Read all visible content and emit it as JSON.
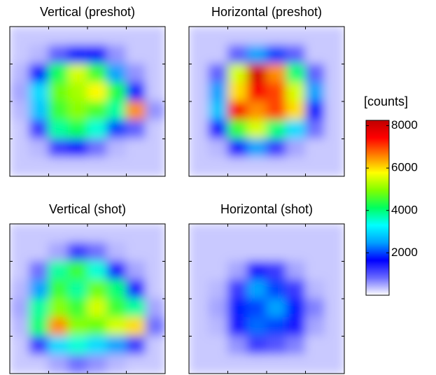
{
  "chart_data": [
    {
      "type": "heatmap",
      "title": "Vertical (preshot)",
      "values": [
        [
          300,
          300,
          300,
          300,
          300,
          300,
          300,
          300
        ],
        [
          300,
          400,
          900,
          1800,
          1500,
          600,
          300,
          300
        ],
        [
          400,
          1800,
          4200,
          5500,
          4500,
          2500,
          600,
          300
        ],
        [
          500,
          3000,
          4800,
          5200,
          5800,
          4300,
          1800,
          300
        ],
        [
          400,
          2800,
          4500,
          5000,
          4600,
          3800,
          6500,
          600
        ],
        [
          300,
          1200,
          3800,
          4200,
          3500,
          2000,
          900,
          300
        ],
        [
          300,
          400,
          1200,
          1500,
          800,
          400,
          300,
          300
        ],
        [
          300,
          300,
          300,
          300,
          300,
          300,
          300,
          300
        ]
      ]
    },
    {
      "type": "heatmap",
      "title": "Horizontal (preshot)",
      "values": [
        [
          300,
          300,
          300,
          300,
          300,
          300,
          300,
          300
        ],
        [
          300,
          300,
          900,
          2500,
          2000,
          900,
          300,
          300
        ],
        [
          300,
          900,
          5500,
          8000,
          6500,
          4000,
          900,
          300
        ],
        [
          300,
          2500,
          6000,
          7500,
          7000,
          5500,
          2500,
          300
        ],
        [
          300,
          2800,
          7500,
          6500,
          7000,
          6000,
          1800,
          300
        ],
        [
          300,
          1500,
          4500,
          5500,
          4000,
          3000,
          800,
          300
        ],
        [
          300,
          400,
          1500,
          2500,
          1200,
          500,
          300,
          300
        ],
        [
          300,
          300,
          300,
          300,
          300,
          300,
          300,
          300
        ]
      ]
    },
    {
      "type": "heatmap",
      "title": "Vertical (shot)",
      "values": [
        [
          300,
          300,
          300,
          300,
          300,
          300,
          300,
          300
        ],
        [
          300,
          300,
          500,
          1200,
          800,
          400,
          300,
          300
        ],
        [
          300,
          800,
          3800,
          4500,
          3500,
          1500,
          500,
          300
        ],
        [
          400,
          2500,
          4500,
          3800,
          4800,
          4000,
          1500,
          300
        ],
        [
          500,
          3800,
          5000,
          4500,
          5500,
          4500,
          3800,
          500
        ],
        [
          400,
          4000,
          6500,
          5000,
          4800,
          5500,
          6000,
          800
        ],
        [
          300,
          1200,
          3000,
          3500,
          3000,
          2500,
          1200,
          300
        ],
        [
          300,
          300,
          500,
          800,
          600,
          400,
          300,
          300
        ]
      ]
    },
    {
      "type": "heatmap",
      "title": "Horizontal (shot)",
      "values": [
        [
          300,
          300,
          300,
          300,
          300,
          300,
          300,
          300
        ],
        [
          300,
          300,
          300,
          300,
          300,
          300,
          300,
          300
        ],
        [
          300,
          300,
          500,
          1500,
          1200,
          500,
          300,
          300
        ],
        [
          300,
          400,
          1200,
          2500,
          2000,
          1200,
          400,
          300
        ],
        [
          300,
          500,
          1800,
          2000,
          2500,
          1800,
          700,
          300
        ],
        [
          300,
          400,
          1500,
          2200,
          2000,
          1500,
          500,
          300
        ],
        [
          300,
          300,
          600,
          1200,
          1000,
          700,
          300,
          300
        ],
        [
          300,
          300,
          300,
          300,
          300,
          300,
          300,
          300
        ]
      ]
    },
    {
      "type": "colorbar",
      "label": "[counts]",
      "ylim": [
        0,
        8250
      ],
      "yticks": [
        2000,
        4000,
        6000,
        8000
      ],
      "colormap": [
        "#ffffff",
        "#6a6aff",
        "#0000ff",
        "#00a0ff",
        "#00ffff",
        "#00ff60",
        "#80ff00",
        "#ffff00",
        "#ff8000",
        "#ff0000",
        "#c00000"
      ]
    }
  ]
}
